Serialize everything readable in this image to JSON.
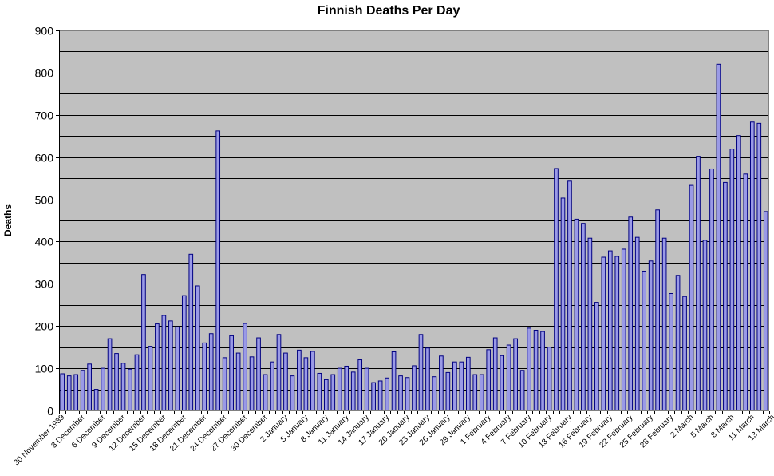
{
  "chart_data": {
    "type": "bar",
    "title": "Finnish Deaths Per Day",
    "xlabel": "",
    "ylabel": "Deaths",
    "ylim": [
      0,
      900
    ],
    "ytick_values": [
      0,
      100,
      200,
      300,
      400,
      500,
      600,
      700,
      800,
      900
    ],
    "ytick_labels": [
      "0",
      "100",
      "200",
      "300",
      "400",
      "500",
      "600",
      "700",
      "800",
      "900"
    ],
    "grid": true,
    "colors": {
      "plot_bg": "#c0c0c0",
      "bar_fill": "#9a9ae6",
      "bar_edge": "#000080"
    },
    "x_tick_labels": [
      {
        "index": 0,
        "label": "30 November 1939"
      },
      {
        "index": 3,
        "label": "3 December"
      },
      {
        "index": 6,
        "label": "6 December"
      },
      {
        "index": 9,
        "label": "9 December"
      },
      {
        "index": 12,
        "label": "12 December"
      },
      {
        "index": 15,
        "label": "15 December"
      },
      {
        "index": 18,
        "label": "18 December"
      },
      {
        "index": 21,
        "label": "21 December"
      },
      {
        "index": 24,
        "label": "24 December"
      },
      {
        "index": 27,
        "label": "27 December"
      },
      {
        "index": 30,
        "label": "30 December"
      },
      {
        "index": 33,
        "label": "2 January"
      },
      {
        "index": 36,
        "label": "5 January"
      },
      {
        "index": 39,
        "label": "8 January"
      },
      {
        "index": 42,
        "label": "11 January"
      },
      {
        "index": 45,
        "label": "14 January"
      },
      {
        "index": 48,
        "label": "17 January"
      },
      {
        "index": 51,
        "label": "20 January"
      },
      {
        "index": 54,
        "label": "23 January"
      },
      {
        "index": 57,
        "label": "26 January"
      },
      {
        "index": 60,
        "label": "29 January"
      },
      {
        "index": 63,
        "label": "1 February"
      },
      {
        "index": 66,
        "label": "4 February"
      },
      {
        "index": 69,
        "label": "7 February"
      },
      {
        "index": 72,
        "label": "10 February"
      },
      {
        "index": 75,
        "label": "13 February"
      },
      {
        "index": 78,
        "label": "16 February"
      },
      {
        "index": 81,
        "label": "19 February"
      },
      {
        "index": 84,
        "label": "22 February"
      },
      {
        "index": 87,
        "label": "25 February"
      },
      {
        "index": 90,
        "label": "28 February"
      },
      {
        "index": 93,
        "label": "2 March"
      },
      {
        "index": 96,
        "label": "5 March"
      },
      {
        "index": 99,
        "label": "8 March"
      },
      {
        "index": 102,
        "label": "11 March"
      },
      {
        "index": 105,
        "label": "13 March"
      }
    ],
    "series": [
      {
        "values": [
          87,
          82,
          85,
          95,
          110,
          50,
          100,
          170,
          135,
          112,
          98,
          132,
          322,
          152,
          205,
          225,
          212,
          198,
          272,
          370,
          295,
          160,
          182,
          662,
          125,
          177,
          136,
          206,
          127,
          172,
          85,
          115,
          180,
          136,
          82,
          143,
          125,
          140,
          88,
          73,
          85,
          100,
          105,
          91,
          120,
          100,
          66,
          70,
          77,
          139,
          82,
          78,
          106,
          180,
          148,
          80,
          129,
          90,
          115,
          115,
          126,
          85,
          85,
          144,
          172,
          130,
          155,
          170,
          95,
          195,
          190,
          187,
          150,
          573,
          503,
          543,
          453,
          443,
          408,
          256,
          363,
          378,
          365,
          382,
          458,
          410,
          330,
          354,
          475,
          408,
          277,
          320,
          270,
          533,
          602,
          403,
          572,
          820,
          540,
          619,
          651,
          560,
          683,
          680,
          471
        ]
      }
    ]
  }
}
